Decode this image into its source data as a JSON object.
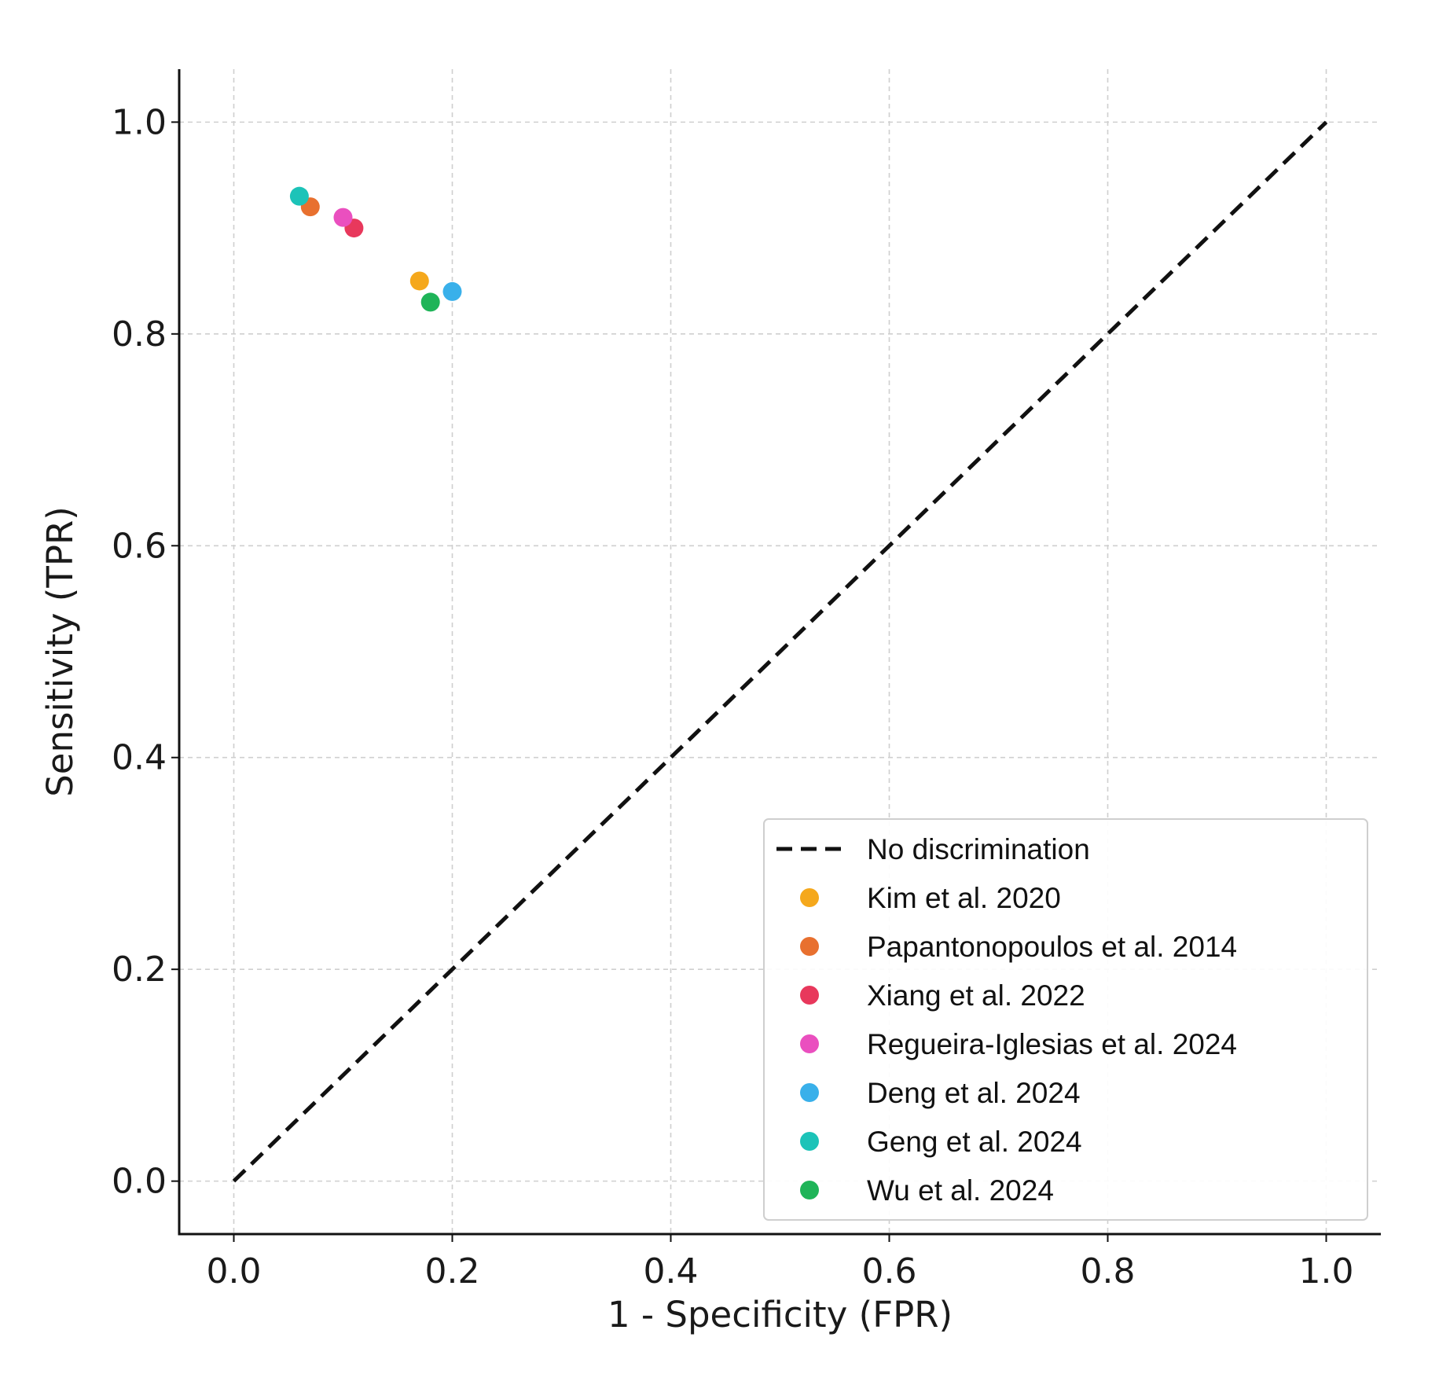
{
  "chart_data": {
    "type": "scatter",
    "title": "",
    "xlabel": "1 - Specificity (FPR)",
    "ylabel": "Sensitivity (TPR)",
    "xlim": [
      -0.05,
      1.05
    ],
    "ylim": [
      -0.05,
      1.05
    ],
    "xticks": [
      0.0,
      0.2,
      0.4,
      0.6,
      0.8,
      1.0
    ],
    "yticks": [
      0.0,
      0.2,
      0.4,
      0.6,
      0.8,
      1.0
    ],
    "xtick_labels": [
      "0.0",
      "0.2",
      "0.4",
      "0.6",
      "0.8",
      "1.0"
    ],
    "ytick_labels": [
      "0.0",
      "0.2",
      "0.4",
      "0.6",
      "0.8",
      "1.0"
    ],
    "grid": true,
    "legend_position": "lower-right",
    "reference_line": {
      "name": "No discrimination",
      "x": [
        0.0,
        1.0
      ],
      "y": [
        0.0,
        1.0
      ],
      "style": "dashed",
      "color": "#111111"
    },
    "series": [
      {
        "name": "Kim et al.  2020",
        "x": 0.17,
        "y": 0.85,
        "color": "#f5a81c"
      },
      {
        "name": "Papantonopoulos et al.  2014",
        "x": 0.07,
        "y": 0.92,
        "color": "#e8702f"
      },
      {
        "name": "Xiang et al.  2022",
        "x": 0.11,
        "y": 0.9,
        "color": "#e8385c"
      },
      {
        "name": "Regueira-Iglesias et al.  2024",
        "x": 0.1,
        "y": 0.91,
        "color": "#ea4fbf"
      },
      {
        "name": "Deng et al.  2024",
        "x": 0.2,
        "y": 0.84,
        "color": "#39b0ea"
      },
      {
        "name": "Geng et al.  2024",
        "x": 0.06,
        "y": 0.93,
        "color": "#1cc3b8"
      },
      {
        "name": "Wu et al.  2024",
        "x": 0.18,
        "y": 0.83,
        "color": "#1fb458"
      }
    ]
  }
}
